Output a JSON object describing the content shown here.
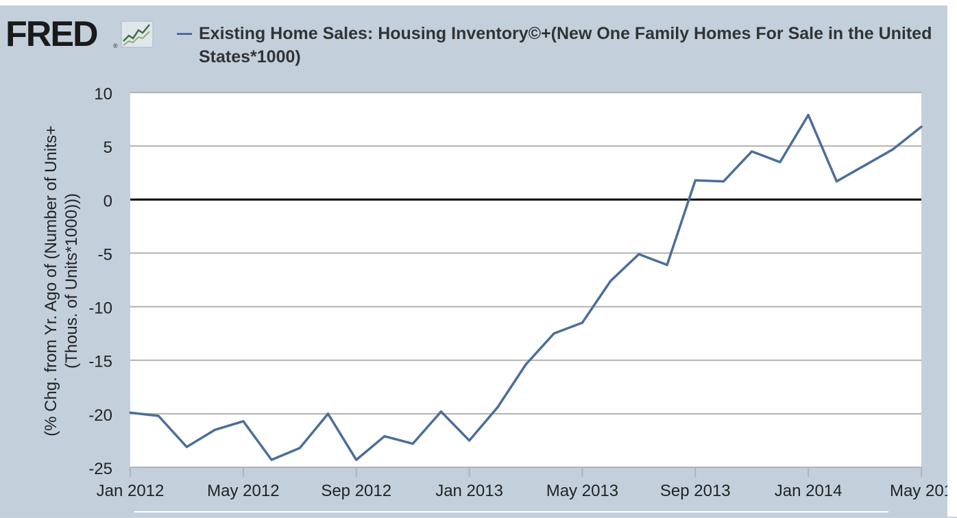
{
  "logo": {
    "text": "FRED",
    "reg": "®"
  },
  "chart_data": {
    "type": "line",
    "title": "Existing Home Sales: Housing Inventory©+(New One Family Homes For Sale in the United States*1000)",
    "ylabel_line1": "(% Chg. from Yr. Ago of (Number of Units+",
    "ylabel_line2": "(Thous. of Units*1000)))",
    "ylim": [
      -25,
      10
    ],
    "yticks": [
      10,
      5,
      0,
      -5,
      -10,
      -15,
      -20,
      -25
    ],
    "xticks": [
      {
        "label": "Jan 2012",
        "x": "2012-01"
      },
      {
        "label": "May 2012",
        "x": "2012-05"
      },
      {
        "label": "Sep 2012",
        "x": "2012-09"
      },
      {
        "label": "Jan 2013",
        "x": "2013-01"
      },
      {
        "label": "May 2013",
        "x": "2013-05"
      },
      {
        "label": "Sep 2013",
        "x": "2013-09"
      },
      {
        "label": "Jan 2014",
        "x": "2014-01"
      },
      {
        "label": "May 201",
        "x": "2014-05"
      }
    ],
    "grid": true,
    "zero_line": true,
    "line_color": "#4b6e99",
    "series": [
      {
        "x": [
          "2012-01",
          "2012-02",
          "2012-03",
          "2012-04",
          "2012-05",
          "2012-06",
          "2012-07",
          "2012-08",
          "2012-09",
          "2012-10",
          "2012-11",
          "2012-12",
          "2013-01",
          "2013-02",
          "2013-03",
          "2013-04",
          "2013-05",
          "2013-06",
          "2013-07",
          "2013-08",
          "2013-09",
          "2013-10",
          "2013-11",
          "2013-12",
          "2014-01",
          "2014-02",
          "2014-03",
          "2014-04",
          "2014-05"
        ],
        "values": [
          -19.9,
          -20.2,
          -23.1,
          -21.5,
          -20.7,
          -24.3,
          -23.2,
          -20.0,
          -24.3,
          -22.1,
          -22.8,
          -19.8,
          -22.5,
          -19.4,
          -15.4,
          -12.5,
          -11.5,
          -7.6,
          -5.1,
          -6.1,
          1.8,
          1.7,
          4.5,
          3.5,
          7.9,
          1.7,
          3.2,
          4.7,
          6.8
        ]
      }
    ]
  }
}
